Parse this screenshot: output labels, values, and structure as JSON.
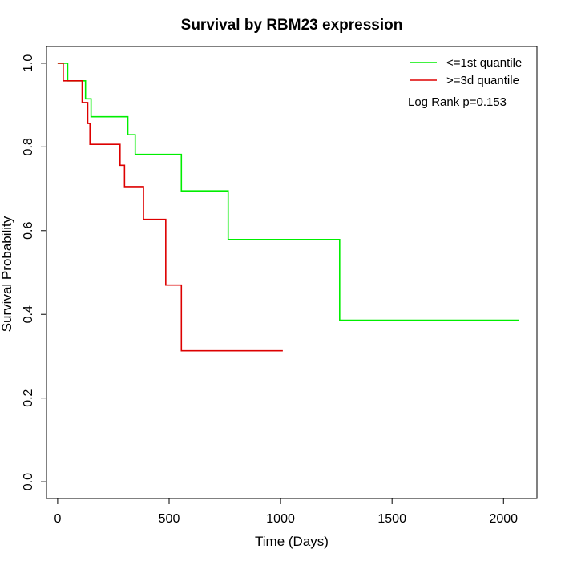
{
  "chart_data": {
    "type": "line",
    "title": "Survival by RBM23 expression",
    "xlabel": "Time (Days)",
    "ylabel": "Survival Probability",
    "xlim": [
      -50,
      2150
    ],
    "ylim": [
      -0.04,
      1.04
    ],
    "x_ticks": [
      0,
      500,
      1000,
      1500,
      2000
    ],
    "y_ticks": [
      0.0,
      0.2,
      0.4,
      0.6,
      0.8,
      1.0
    ],
    "x_tick_labels": [
      "0",
      "500",
      "1000",
      "1500",
      "2000"
    ],
    "y_tick_labels": [
      "0.0",
      "0.2",
      "0.4",
      "0.6",
      "0.8",
      "1.0"
    ],
    "grid": false,
    "legend_position": "top-right",
    "annotation": "Log Rank p=0.153",
    "series": [
      {
        "name": "<=1st quantile",
        "color": "#00ee00",
        "step": true,
        "x": [
          0,
          45,
          125,
          150,
          315,
          348,
          555,
          765,
          1265,
          2070
        ],
        "y": [
          1.0,
          0.958,
          0.915,
          0.872,
          0.829,
          0.782,
          0.695,
          0.579,
          0.386,
          0.386
        ]
      },
      {
        "name": ">=3d quantile",
        "color": "#dd0000",
        "step": true,
        "x": [
          0,
          25,
          110,
          135,
          145,
          280,
          300,
          385,
          485,
          555,
          1010
        ],
        "y": [
          1.0,
          0.958,
          0.906,
          0.856,
          0.806,
          0.756,
          0.705,
          0.627,
          0.47,
          0.313,
          0.313
        ]
      }
    ]
  }
}
